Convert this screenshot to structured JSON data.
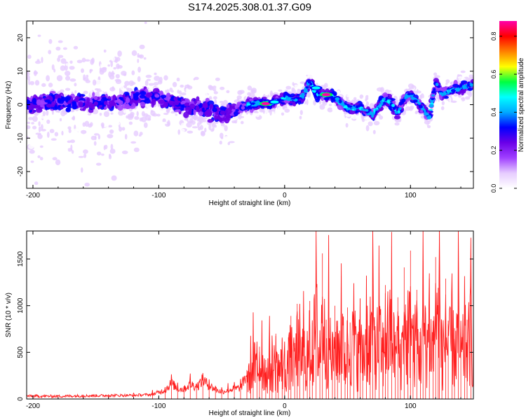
{
  "title": "S174.2025.308.01.37.G09",
  "chart_data": [
    {
      "type": "heatmap",
      "name": "spectrogram",
      "xlabel": "Height of straight line (km)",
      "ylabel": "Frequency (Hz)",
      "xlim": [
        -205,
        150
      ],
      "ylim": [
        -25,
        25
      ],
      "xticks": [
        -200,
        -100,
        0,
        100
      ],
      "yticks": [
        -20,
        -10,
        0,
        10,
        20
      ],
      "colorbar": {
        "label": "Normalized spectral amplitude",
        "range": [
          0,
          0.88
        ],
        "ticks": [
          0.0,
          0.2,
          0.4,
          0.6,
          0.8
        ],
        "colors": [
          "#ffffff",
          "#e6ccff",
          "#a040ff",
          "#6a00e8",
          "#0000ff",
          "#00aaff",
          "#00ffff",
          "#00ff40",
          "#ffff00",
          "#ff8000",
          "#ff0000",
          "#ff00aa"
        ]
      },
      "ridge": {
        "x": [
          -205,
          -190,
          -175,
          -160,
          -145,
          -130,
          -115,
          -100,
          -90,
          -80,
          -70,
          -60,
          -50,
          -40,
          -30,
          -20,
          -10,
          0,
          10,
          15,
          20,
          25,
          30,
          35,
          40,
          50,
          60,
          70,
          80,
          85,
          90,
          95,
          100,
          105,
          110,
          115,
          120,
          125,
          130,
          140,
          150
        ],
        "y": [
          0,
          0.5,
          1,
          0.5,
          0.5,
          1,
          2,
          2,
          1,
          0,
          -1,
          -1.5,
          -3,
          -2,
          0,
          0.5,
          0.5,
          2,
          1.5,
          3,
          7,
          3,
          3,
          3,
          2,
          -1,
          -1,
          -3,
          2,
          0,
          -3,
          2,
          3,
          1,
          -1,
          -4,
          7,
          3,
          4,
          5,
          6
        ],
        "peak_amplitudes": [
          {
            "x": -15,
            "y": 0.3,
            "value": 0.85
          },
          {
            "x": 33,
            "y": 3.0,
            "value": 0.85
          },
          {
            "x": -8,
            "y": 0.8,
            "value": 0.5
          },
          {
            "x": 25,
            "y": 5.0,
            "value": 0.45
          }
        ]
      }
    },
    {
      "type": "line",
      "name": "snr",
      "xlabel": "Height of straight line (km)",
      "ylabel": "SNR (10 * v/v)",
      "xlim": [
        -205,
        150
      ],
      "ylim": [
        0,
        1800
      ],
      "xticks": [
        -200,
        -100,
        0,
        100
      ],
      "yticks": [
        0,
        500,
        1000,
        1500
      ],
      "series": [
        {
          "name": "SNR",
          "color": "#ff2020",
          "x": [
            -205,
            -180,
            -160,
            -140,
            -120,
            -105,
            -95,
            -90,
            -85,
            -80,
            -75,
            -70,
            -65,
            -60,
            -55,
            -50,
            -45,
            -40,
            -35,
            -30,
            -27,
            -25,
            -22,
            -20,
            -18,
            -15,
            -12,
            -10,
            -7,
            -5,
            -2,
            0,
            3,
            5,
            8,
            10,
            12,
            15,
            18,
            20,
            22,
            25,
            28,
            30,
            33,
            35,
            38,
            40,
            42,
            45,
            48,
            50,
            52,
            55,
            58,
            60,
            62,
            65,
            68,
            70,
            72,
            75,
            78,
            80,
            82,
            85,
            88,
            90,
            92,
            95,
            98,
            100,
            102,
            105,
            108,
            110,
            112,
            115,
            118,
            120,
            122,
            123,
            125,
            128,
            130,
            133,
            135,
            138,
            140,
            143,
            145,
            148,
            150
          ],
          "y": [
            30,
            25,
            35,
            40,
            45,
            60,
            110,
            200,
            130,
            120,
            190,
            150,
            240,
            170,
            120,
            90,
            110,
            130,
            140,
            310,
            480,
            700,
            510,
            560,
            760,
            420,
            620,
            550,
            700,
            480,
            640,
            520,
            660,
            890,
            600,
            1020,
            720,
            910,
            580,
            1050,
            820,
            1480,
            700,
            1560,
            850,
            1220,
            650,
            1000,
            780,
            1320,
            610,
            980,
            820,
            1140,
            700,
            1070,
            640,
            1290,
            860,
            1700,
            780,
            1240,
            660,
            1220,
            990,
            1380,
            720,
            1090,
            640,
            1410,
            880,
            1590,
            900,
            1170,
            760,
            1480,
            980,
            1290,
            840,
            1520,
            1190,
            1820,
            700,
            1290,
            840,
            1200,
            760,
            1360,
            680,
            1100,
            850,
            1310,
            920
          ]
        }
      ]
    }
  ]
}
